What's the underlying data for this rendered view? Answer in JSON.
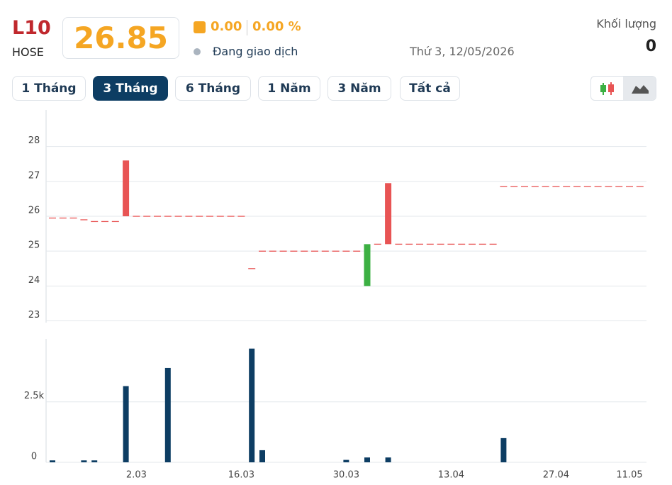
{
  "header": {
    "symbol": "L10",
    "exchange": "HOSE",
    "price": "26.85",
    "change": "0.00",
    "change_percent": "0.00 %",
    "status": "Đang giao dịch",
    "date": "Thứ 3, 12/05/2026",
    "volume_label": "Khối lượng",
    "volume": "0"
  },
  "range_buttons": {
    "labels": [
      "1 Tháng",
      "3 Tháng",
      "6 Tháng",
      "1 Năm",
      "3 Năm",
      "Tất cả"
    ],
    "active": 1
  },
  "chart_data": [
    {
      "type": "candlestick",
      "up_color": "#3cb043",
      "down_color": "#e85454",
      "flat_color": "#e85454",
      "ylim": [
        22.95,
        29.05
      ],
      "yticks": [
        23,
        24,
        25,
        26,
        27,
        28
      ],
      "grid": true,
      "open": [
        25.95,
        25.95,
        25.95,
        25.9,
        25.85,
        25.85,
        25.85,
        27.6,
        26,
        26,
        26,
        26,
        26,
        26,
        26,
        26,
        26,
        26,
        26,
        24.5,
        25,
        25,
        25,
        25,
        25,
        25,
        25,
        25,
        25,
        25,
        24,
        25.2,
        26.95,
        25.2,
        25.2,
        25.2,
        25.2,
        25.2,
        25.2,
        25.2,
        25.2,
        25.2,
        25.2,
        26.85,
        26.85,
        26.85,
        26.85,
        26.85,
        26.85,
        26.85,
        26.85,
        26.85,
        26.85,
        26.85,
        26.85,
        26.85,
        26.85
      ],
      "close": [
        25.95,
        25.95,
        25.95,
        25.9,
        25.85,
        25.85,
        25.85,
        26,
        26,
        26,
        26,
        26,
        26,
        26,
        26,
        26,
        26,
        26,
        26,
        24.5,
        25,
        25,
        25,
        25,
        25,
        25,
        25,
        25,
        25,
        25,
        25.2,
        25.2,
        25.2,
        25.2,
        25.2,
        25.2,
        25.2,
        25.2,
        25.2,
        25.2,
        25.2,
        25.2,
        25.2,
        26.85,
        26.85,
        26.85,
        26.85,
        26.85,
        26.85,
        26.85,
        26.85,
        26.85,
        26.85,
        26.85,
        26.85,
        26.85,
        26.85
      ]
    },
    {
      "type": "bar",
      "color": "#0d3d63",
      "ylim": [
        0,
        5100
      ],
      "yticks": [
        0,
        {
          "value": 2500,
          "label": "2.5k"
        }
      ],
      "grid": true,
      "categories": [
        null,
        null,
        null,
        null,
        null,
        null,
        null,
        null,
        "2.03",
        null,
        null,
        null,
        null,
        null,
        null,
        null,
        null,
        null,
        "16.03",
        null,
        null,
        null,
        null,
        null,
        null,
        null,
        null,
        null,
        "30.03",
        null,
        null,
        null,
        null,
        null,
        null,
        null,
        null,
        null,
        "13.04",
        null,
        null,
        null,
        null,
        null,
        null,
        null,
        null,
        null,
        "27.04",
        null,
        null,
        null,
        null,
        null,
        null,
        "11.05",
        null
      ],
      "values": [
        80,
        0,
        0,
        80,
        80,
        0,
        0,
        3150,
        0,
        0,
        0,
        3900,
        0,
        0,
        0,
        0,
        0,
        0,
        0,
        4700,
        500,
        0,
        0,
        0,
        0,
        0,
        0,
        0,
        100,
        0,
        200,
        0,
        200,
        0,
        0,
        0,
        0,
        0,
        0,
        0,
        0,
        0,
        0,
        1000,
        0,
        0,
        0,
        0,
        0,
        0,
        0,
        0,
        0,
        0,
        0,
        0,
        0
      ]
    }
  ]
}
